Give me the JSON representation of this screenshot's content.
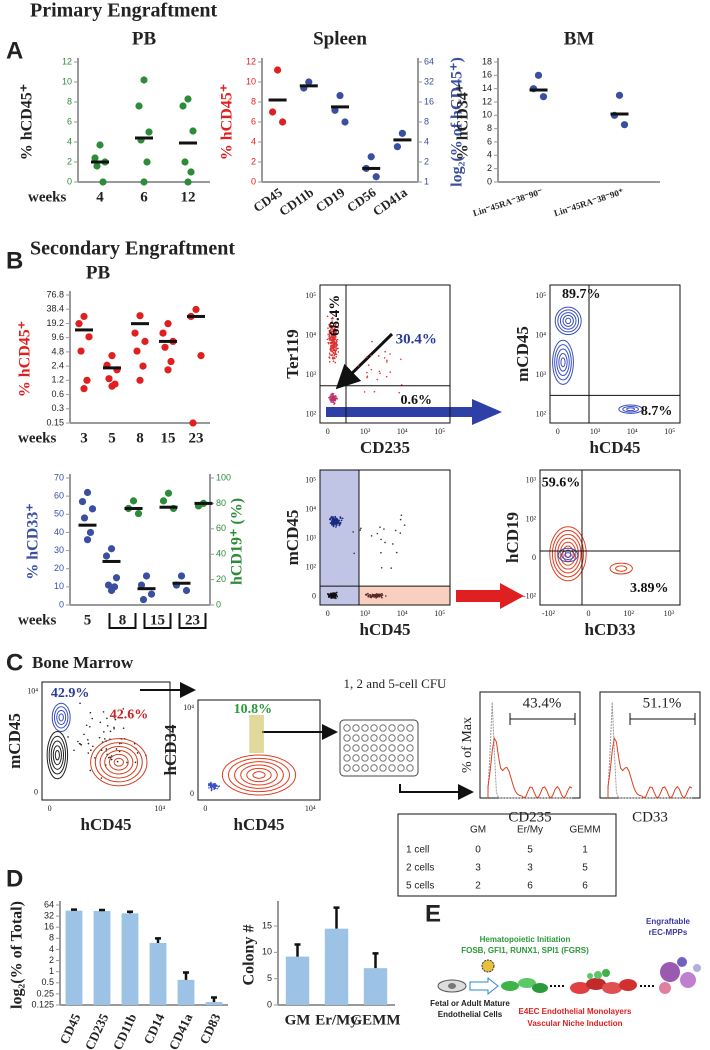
{
  "panels": [
    "A",
    "B",
    "C",
    "D",
    "E"
  ],
  "headings": [
    "Primary Engraftment",
    "Secondary Engraftment",
    "Bone Marrow"
  ],
  "chart_data": [
    {
      "type": "dot",
      "title": "PB",
      "ylabel": "% hCD45⁺",
      "xlabel": "weeks",
      "categories": [
        "4",
        "6",
        "12"
      ],
      "ylim": [
        0,
        12
      ],
      "yticks": [
        0,
        2,
        4,
        6,
        8,
        10,
        12
      ],
      "ytick_color": "#2e8b3a",
      "series": [
        {
          "color": "#2e8b3a",
          "values": [
            [
              3.7,
              2.4,
              2,
              1.6,
              0
            ],
            [
              10.2,
              7.6,
              5,
              4.2,
              2,
              0
            ],
            [
              8.3,
              7.6,
              5.1,
              2,
              1,
              0
            ]
          ],
          "medians": [
            2,
            4.4,
            3.9
          ]
        }
      ]
    },
    {
      "type": "dot",
      "title": "Spleen",
      "ylabel": "% hCD45⁺",
      "ylabel_color": "#e02020",
      "y2label": "log₂(% of hCD45⁺)",
      "y2label_color": "#3a4fa0",
      "categories": [
        "CD45",
        "CD11b",
        "CD19",
        "CD56",
        "CD41a"
      ],
      "ylim": [
        0,
        12
      ],
      "yticks": [
        0,
        2,
        4,
        6,
        8,
        10,
        12
      ],
      "ytick_color": "#e02020",
      "y2lim": [
        1,
        64
      ],
      "y2ticks": [
        1,
        2,
        4,
        8,
        16,
        32,
        64
      ],
      "y2log": true,
      "y2tick_color": "#3a4fa0",
      "series": [
        {
          "color": "#e02020",
          "values": [
            [
              11.2,
              7,
              6
            ],
            null,
            null,
            null,
            null
          ],
          "medians": [
            8.2,
            null,
            null,
            null,
            null
          ]
        },
        {
          "color": "#3a4fa0",
          "axis": "y2",
          "values": [
            null,
            [
              32,
              26
            ],
            [
              20,
              12,
              8
            ],
            [
              2.4,
              1.6,
              1.2
            ],
            [
              5.4,
              3.4
            ]
          ],
          "medians": [
            null,
            28,
            13.5,
            1.6,
            4.3
          ]
        }
      ]
    },
    {
      "type": "dot",
      "title": "BM",
      "ylabel": "% hCD34⁺",
      "categories": [
        "Lin⁻45RA⁻38⁻90⁻",
        "Lin⁻45RA⁻38⁻90⁺"
      ],
      "ylim": [
        0,
        18
      ],
      "yticks": [
        0,
        2,
        4,
        6,
        8,
        10,
        12,
        14,
        16,
        18
      ],
      "series": [
        {
          "color": "#3a4fa0",
          "values": [
            [
              16,
              14,
              12.8
            ],
            [
              13,
              10,
              8.6
            ]
          ],
          "medians": [
            13.8,
            10.2
          ]
        }
      ]
    },
    {
      "type": "dot",
      "title": "PB",
      "ylabel": "% hCD45⁺",
      "ylabel_color": "#e02020",
      "xlabel": "weeks",
      "categories": [
        "3",
        "5",
        "8",
        "15",
        "23"
      ],
      "ylog": true,
      "ylim": [
        0.15,
        76.8
      ],
      "yticks": [
        0.15,
        0.3,
        0.6,
        1.2,
        2.4,
        4.8,
        9.6,
        19.2,
        38.4,
        76.8
      ],
      "series": [
        {
          "color": "#e02020",
          "values": [
            [
              27,
              19,
              10,
              5,
              1.2,
              0.8
            ],
            [
              4,
              2.5,
              2,
              1.3,
              1,
              0.9
            ],
            [
              28,
              12,
              8,
              5,
              2.4,
              1.2
            ],
            [
              19,
              12,
              8,
              6,
              3,
              2
            ],
            [
              38,
              27,
              4,
              0.15
            ]
          ],
          "medians": [
            14,
            2.2,
            19,
            8,
            27
          ]
        }
      ]
    },
    {
      "type": "dot",
      "ylabel": "% hCD33⁺",
      "ylabel_color": "#3a4fa0",
      "y2label": "hCD19⁺ (%)",
      "y2label_color": "#2e8b3a",
      "xlabel": "weeks",
      "categories": [
        "5",
        "8",
        "15",
        "23"
      ],
      "ylim": [
        0,
        70
      ],
      "yticks": [
        0,
        10,
        20,
        30,
        40,
        50,
        60,
        70
      ],
      "ytick_color": "#3a4fa0",
      "y2lim": [
        0,
        100
      ],
      "y2ticks": [
        0,
        20,
        40,
        60,
        80,
        100
      ],
      "y2tick_color": "#2e8b3a",
      "series": [
        {
          "color": "#3a4fa0",
          "values": [
            [
              62,
              57,
              53,
              48,
              40,
              36
            ],
            [
              31,
              27,
              15,
              11,
              10,
              8
            ],
            [
              16,
              11,
              6,
              3
            ],
            [
              16,
              11,
              8
            ]
          ],
          "medians": [
            44,
            24,
            9,
            12
          ]
        },
        {
          "color": "#2e8b3a",
          "axis": "y2",
          "values": [
            null,
            [
              82,
              76,
              72
            ],
            [
              88,
              82,
              76
            ],
            [
              80,
              78
            ]
          ],
          "medians": [
            null,
            76,
            77,
            80
          ]
        }
      ]
    },
    {
      "type": "bar",
      "ylabel": "log₂(% of Total)",
      "categories": [
        "CD45",
        "CD235",
        "CD11b",
        "CD14",
        "CD41a",
        "CD83"
      ],
      "ylog": true,
      "ylim": [
        0.125,
        64
      ],
      "yticks": [
        0.125,
        0.25,
        0.5,
        1,
        2,
        4,
        8,
        16,
        32,
        64
      ],
      "color": "#9cc3e6",
      "values": [
        45,
        44,
        38,
        6,
        0.6,
        0.15
      ],
      "errors": [
        3,
        3,
        4,
        2,
        0.35,
        0.05
      ]
    },
    {
      "type": "bar",
      "ylabel": "Colony #",
      "categories": [
        "GM",
        "Er/My",
        "GEMM"
      ],
      "ylim": [
        0,
        19
      ],
      "yticks": [
        0,
        5,
        10,
        15
      ],
      "color": "#9cc3e6",
      "values": [
        9.2,
        14.5,
        7
      ],
      "errors": [
        2.3,
        4,
        2.8
      ]
    }
  ],
  "flow": [
    {
      "xlabel": "CD235",
      "ylabel": "Ter119",
      "xticks": [
        "0",
        "10³",
        "10⁴",
        "10⁵"
      ],
      "yticks": [
        "10²",
        "10³",
        "10⁴",
        "10⁵"
      ],
      "gates": [
        "68.4%",
        "30.4%",
        "0.6%"
      ]
    },
    {
      "xlabel": "hCD45",
      "ylabel": "mCD45",
      "xticks": [
        "0",
        "10³",
        "10⁴",
        "10⁵"
      ],
      "yticks": [
        "10²",
        "10³",
        "10⁴",
        "10⁵"
      ],
      "gates": [
        "89.7%",
        "8.7%"
      ]
    },
    {
      "xlabel": "hCD45",
      "ylabel": "mCD45",
      "xticks": [
        "0",
        "10³",
        "10⁴",
        "10⁵"
      ],
      "yticks": [
        "0",
        "10²",
        "10³",
        "10⁴",
        "10⁵"
      ],
      "gates": []
    },
    {
      "xlabel": "hCD33",
      "ylabel": "hCD19",
      "xticks": [
        "-10²",
        "0",
        "10²",
        "10³"
      ],
      "yticks": [
        "-10²",
        "0",
        "10²",
        "10³"
      ],
      "gates": [
        "59.6%",
        "3.89%"
      ]
    },
    {
      "xlabel": "hCD45",
      "ylabel": "mCD45",
      "xticks": [
        "0",
        "10⁴"
      ],
      "yticks": [
        "0",
        "10⁴"
      ],
      "gates": [
        "42.9%",
        "42.6%"
      ]
    },
    {
      "xlabel": "hCD45",
      "ylabel": "hCD34",
      "xticks": [
        "0",
        "10⁴"
      ],
      "yticks": [
        "0",
        "10⁴"
      ],
      "gates": [
        "10.8%"
      ]
    }
  ],
  "histograms": [
    {
      "xlabel": "CD235",
      "ylabel": "% of Max",
      "gate": "43.4%"
    },
    {
      "xlabel": "CD33",
      "gate": "51.1%"
    }
  ],
  "cfu": "1, 2 and 5-cell CFU",
  "table": {
    "header": [
      "GM",
      "Er/My",
      "GEMM"
    ],
    "rows": [
      [
        "1 cell",
        0,
        5,
        1
      ],
      [
        "2 cells",
        3,
        3,
        5
      ],
      [
        "5 cells",
        2,
        6,
        6
      ]
    ]
  },
  "diagram": {
    "initiation": [
      "Hematopoietic Initiation",
      "FOSB, GFI1, RUNX1, SPI1 (FGRS)"
    ],
    "output": [
      "Engraftable",
      "rEC-MPPs"
    ],
    "source": [
      "Fetal or Adult Mature",
      "Endothelial Cells"
    ],
    "niche": [
      "E4EC Endothelial Monolayers",
      "Vascular Niche Induction"
    ]
  }
}
